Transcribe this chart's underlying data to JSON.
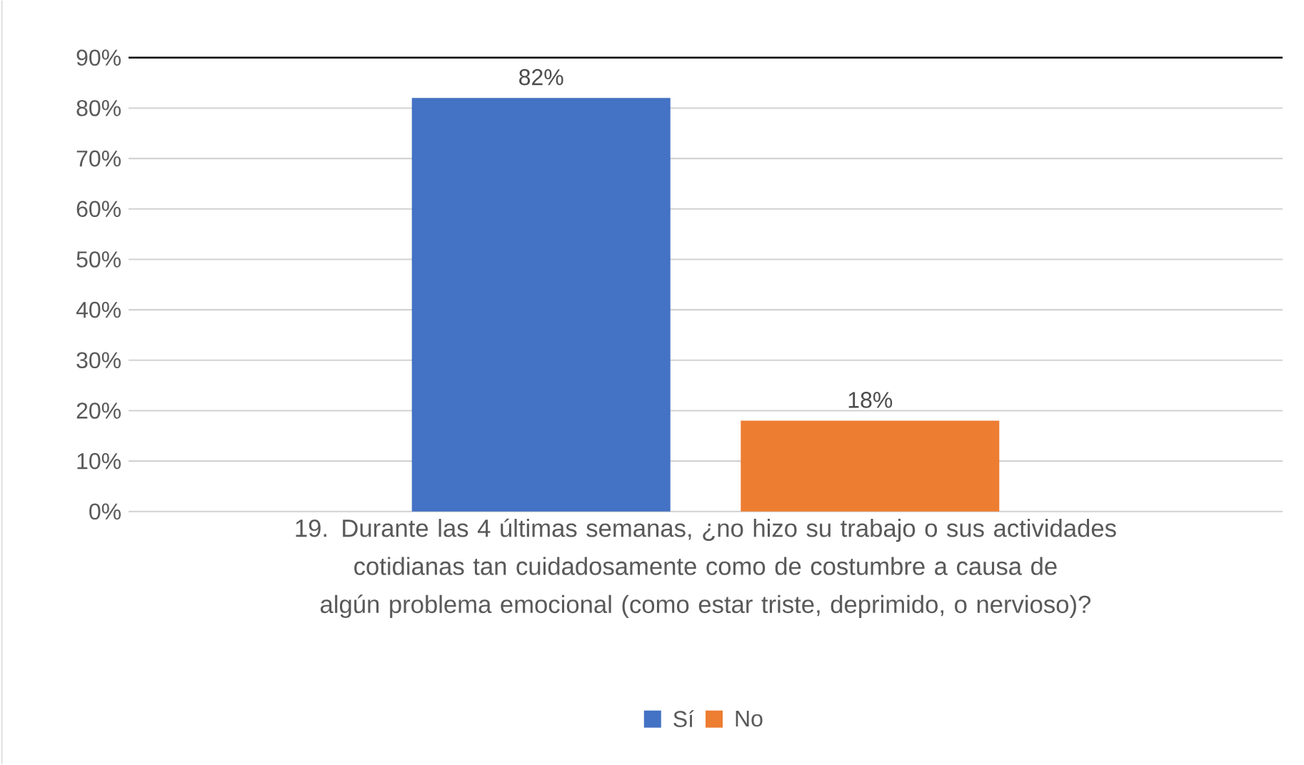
{
  "chart_data": {
    "type": "bar",
    "categories": [
      "19. Durante las 4 últimas semanas, ¿no hizo su trabajo o sus actividades cotidianas tan cuidadosamente como de costumbre a causa de algún problema emocional (como estar triste, deprimido, o nervioso)?"
    ],
    "series": [
      {
        "name": "Sí",
        "color": "#4472c4",
        "values": [
          82
        ],
        "value_labels": [
          "82%"
        ]
      },
      {
        "name": "No",
        "color": "#ed7d31",
        "values": [
          18
        ],
        "value_labels": [
          "18%"
        ]
      }
    ],
    "ylim": [
      0,
      90
    ],
    "yticks": [
      {
        "value": 0,
        "label": "0%"
      },
      {
        "value": 10,
        "label": "10%"
      },
      {
        "value": 20,
        "label": "20%"
      },
      {
        "value": 30,
        "label": "30%"
      },
      {
        "value": 40,
        "label": "40%"
      },
      {
        "value": 50,
        "label": "50%"
      },
      {
        "value": 60,
        "label": "60%"
      },
      {
        "value": 70,
        "label": "70%"
      },
      {
        "value": 80,
        "label": "80%"
      },
      {
        "value": 90,
        "label": "90%"
      }
    ],
    "ref_lines": [
      {
        "axis": "y",
        "value": 90,
        "color": "#000000"
      }
    ],
    "grid": "y",
    "legend": "bottom"
  }
}
